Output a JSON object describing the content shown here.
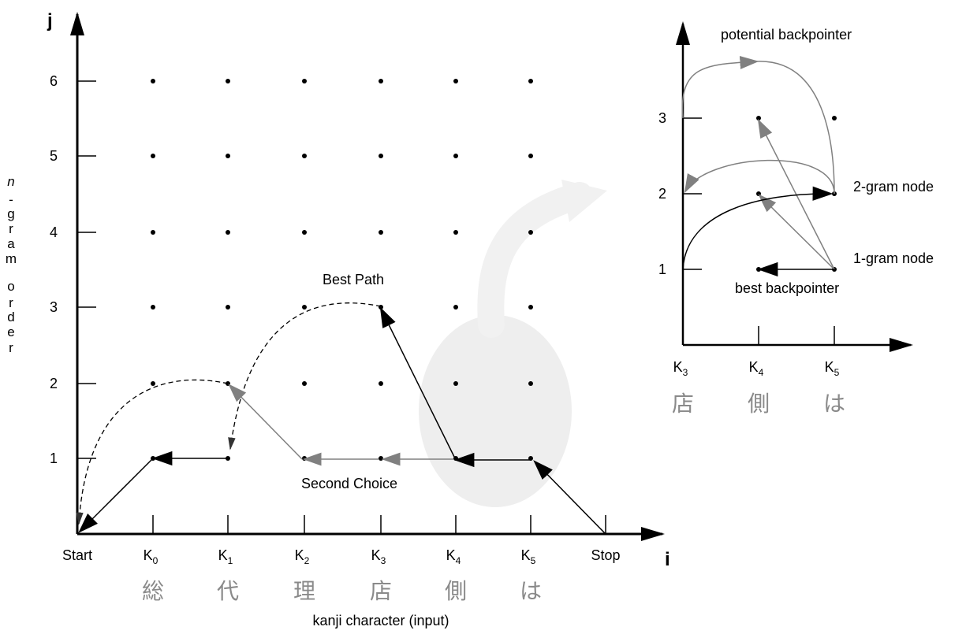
{
  "main": {
    "y_axis_label": "j",
    "x_axis_label": "i",
    "y_title_chars": [
      "n",
      "-",
      "g",
      "r",
      "a",
      "m",
      "o",
      "r",
      "d",
      "e",
      "r"
    ],
    "y_ticks": [
      "1",
      "2",
      "3",
      "4",
      "5",
      "6"
    ],
    "x_ticks": [
      {
        "base": "Start",
        "sub": ""
      },
      {
        "base": "K",
        "sub": "0"
      },
      {
        "base": "K",
        "sub": "1"
      },
      {
        "base": "K",
        "sub": "2"
      },
      {
        "base": "K",
        "sub": "3"
      },
      {
        "base": "K",
        "sub": "4"
      },
      {
        "base": "K",
        "sub": "5"
      },
      {
        "base": "Stop",
        "sub": ""
      }
    ],
    "kanji": [
      "総",
      "代",
      "理",
      "店",
      "側",
      "は"
    ],
    "x_caption": "kanji character (input)",
    "best_path_label": "Best Path",
    "second_choice_label": "Second Choice"
  },
  "inset": {
    "y_ticks": [
      "1",
      "2",
      "3"
    ],
    "x_ticks": [
      {
        "base": "K",
        "sub": "3"
      },
      {
        "base": "K",
        "sub": "4"
      },
      {
        "base": "K",
        "sub": "5"
      }
    ],
    "kanji": [
      "店",
      "側",
      "は"
    ],
    "potential_label": "potential backpointer",
    "two_gram_label": "2-gram node",
    "one_gram_label": "1-gram node",
    "best_backpointer_label": "best backpointer"
  },
  "colors": {
    "axis": "#000000",
    "gray_arrow": "#808080",
    "highlight": "#eeeeee",
    "kanji": "#8a8a8a"
  }
}
